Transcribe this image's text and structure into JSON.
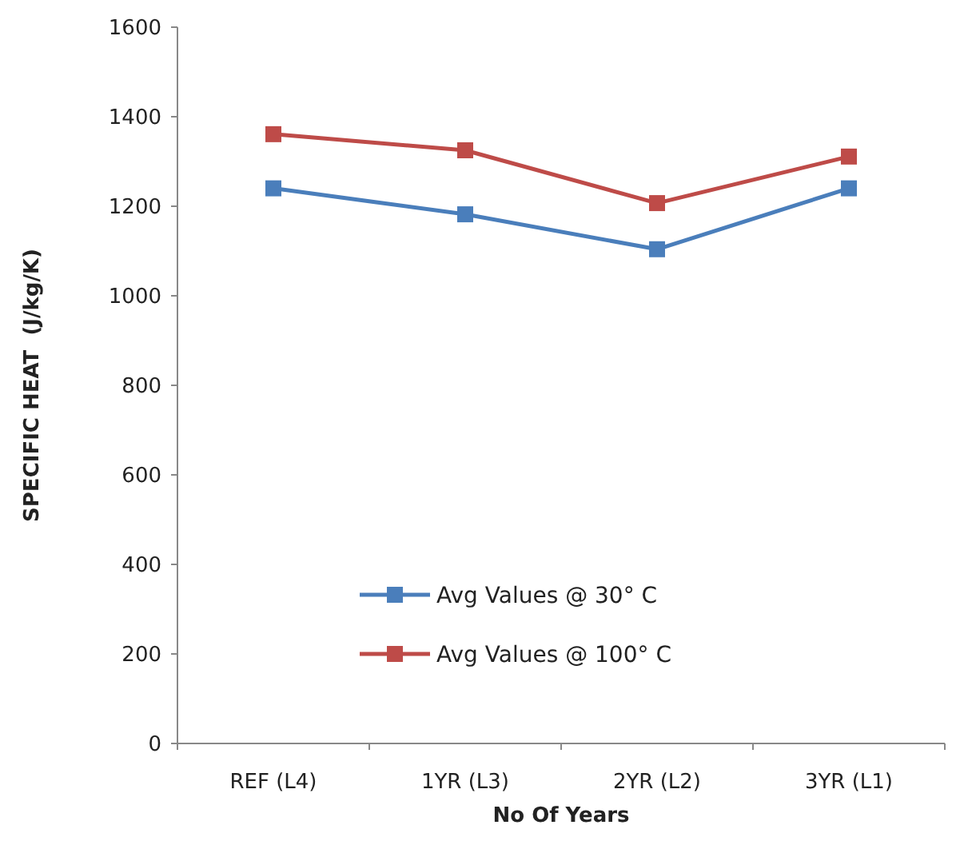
{
  "chart_data": {
    "type": "line",
    "xlabel": "No Of Years",
    "ylabel": "SPECIFIC HEAT  (J/kg/K)",
    "categories": [
      "REF (L4)",
      "1YR (L3)",
      "2YR (L2)",
      "3YR (L1)"
    ],
    "series": [
      {
        "name": "Avg Values @ 30° C",
        "color": "#4a7ebb",
        "values": [
          1240,
          1182,
          1104,
          1240
        ]
      },
      {
        "name": "Avg Values @ 100° C",
        "color": "#be4b48",
        "values": [
          1361,
          1325,
          1207,
          1311
        ]
      }
    ],
    "ylim": [
      0,
      1600
    ],
    "yticks": [
      0,
      200,
      400,
      600,
      800,
      1000,
      1200,
      1400,
      1600
    ],
    "grid": false,
    "legend": "bottom",
    "marker": "square",
    "line_style": "solid"
  }
}
